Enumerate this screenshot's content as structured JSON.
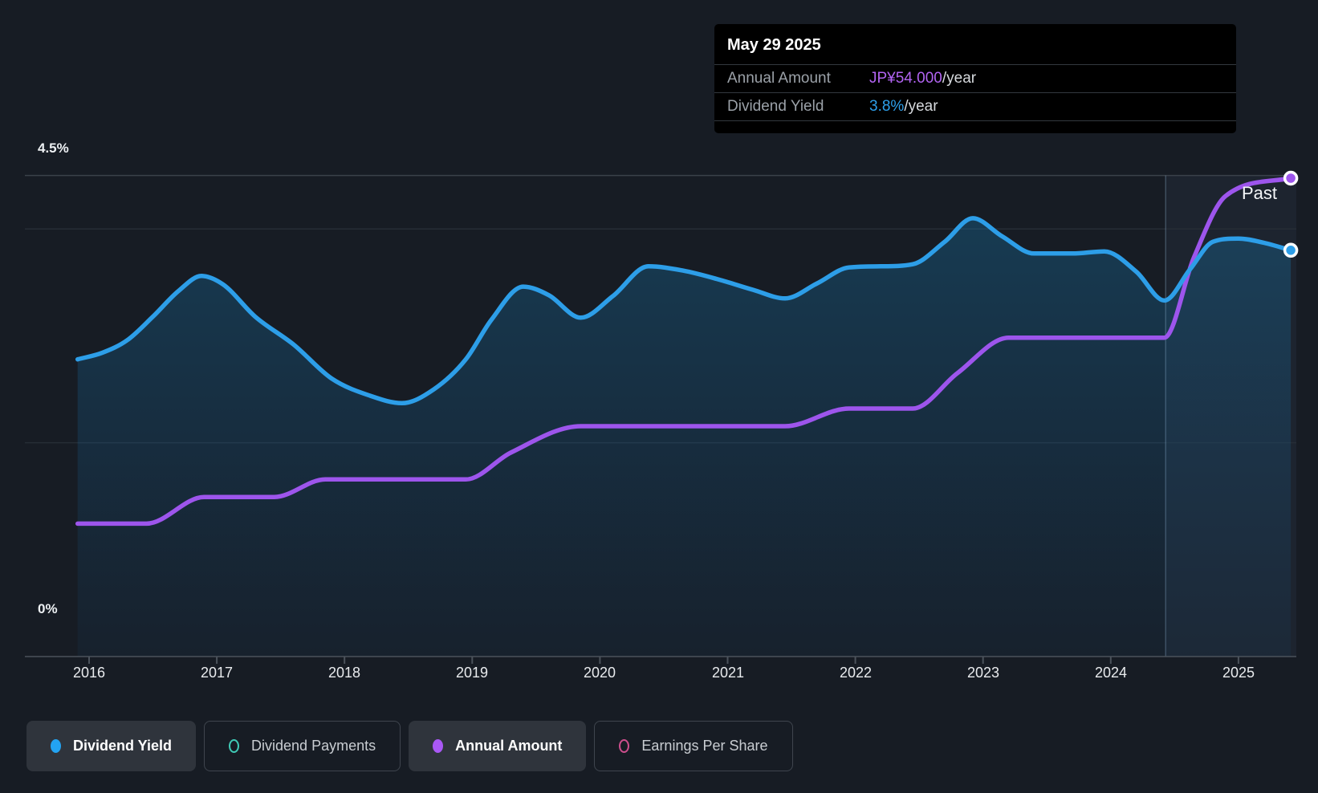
{
  "tooltip": {
    "date": "May 29 2025",
    "rows": [
      {
        "label": "Annual Amount",
        "value": "JP¥54.000",
        "suffix": "/year",
        "color": "#B264F2"
      },
      {
        "label": "Dividend Yield",
        "value": "3.8%",
        "suffix": "/year",
        "color": "#2D9FEA"
      }
    ]
  },
  "chart_data": {
    "type": "line",
    "x_axis": {
      "ticks": [
        2016,
        2017,
        2018,
        2019,
        2020,
        2021,
        2022,
        2023,
        2024,
        2025
      ],
      "x_range": [
        2015.91,
        2025.41
      ]
    },
    "y_axis": {
      "unit": "%",
      "top_label": "4.5%",
      "bottom_label": "0%",
      "gridlines_pct": [
        4.5,
        4.0,
        2.0
      ],
      "range_pct": [
        0,
        4.5
      ]
    },
    "past_label": "Past",
    "now_marker_year": 2024.43,
    "legend_position": "bottom",
    "grid": "partial-horizontal",
    "series": [
      {
        "name": "Dividend Yield",
        "unit": "%",
        "color": "#2D9EE8",
        "style": "line+area",
        "current_value": "3.8%",
        "points": [
          [
            2015.91,
            2.78
          ],
          [
            2016.1,
            2.84
          ],
          [
            2016.3,
            2.96
          ],
          [
            2016.5,
            3.18
          ],
          [
            2016.7,
            3.42
          ],
          [
            2016.88,
            3.56
          ],
          [
            2017.05,
            3.48
          ],
          [
            2017.3,
            3.18
          ],
          [
            2017.6,
            2.92
          ],
          [
            2017.9,
            2.6
          ],
          [
            2018.2,
            2.44
          ],
          [
            2018.45,
            2.37
          ],
          [
            2018.7,
            2.5
          ],
          [
            2018.95,
            2.78
          ],
          [
            2019.15,
            3.15
          ],
          [
            2019.4,
            3.46
          ],
          [
            2019.6,
            3.38
          ],
          [
            2019.85,
            3.17
          ],
          [
            2020.1,
            3.37
          ],
          [
            2020.38,
            3.65
          ],
          [
            2020.65,
            3.61
          ],
          [
            2020.95,
            3.52
          ],
          [
            2021.2,
            3.43
          ],
          [
            2021.45,
            3.35
          ],
          [
            2021.7,
            3.49
          ],
          [
            2021.95,
            3.64
          ],
          [
            2022.2,
            3.65
          ],
          [
            2022.45,
            3.67
          ],
          [
            2022.7,
            3.88
          ],
          [
            2022.92,
            4.1
          ],
          [
            2023.15,
            3.93
          ],
          [
            2023.4,
            3.77
          ],
          [
            2023.7,
            3.77
          ],
          [
            2023.95,
            3.79
          ],
          [
            2024.2,
            3.6
          ],
          [
            2024.42,
            3.33
          ],
          [
            2024.62,
            3.62
          ],
          [
            2024.8,
            3.88
          ],
          [
            2025.0,
            3.91
          ],
          [
            2025.2,
            3.87
          ],
          [
            2025.41,
            3.8
          ]
        ]
      },
      {
        "name": "Annual Amount",
        "unit": "JP¥/year",
        "color": "#9D55EC",
        "style": "line",
        "current_value": "JP¥54.000",
        "points": [
          [
            2015.91,
            15
          ],
          [
            2016.45,
            15
          ],
          [
            2016.9,
            18
          ],
          [
            2017.45,
            18
          ],
          [
            2017.85,
            20
          ],
          [
            2018.95,
            20
          ],
          [
            2019.3,
            23
          ],
          [
            2019.85,
            26
          ],
          [
            2021.45,
            26
          ],
          [
            2021.95,
            28
          ],
          [
            2022.45,
            28
          ],
          [
            2022.8,
            32
          ],
          [
            2023.2,
            36
          ],
          [
            2024.42,
            36
          ],
          [
            2024.65,
            45
          ],
          [
            2024.9,
            52
          ],
          [
            2025.41,
            54
          ]
        ]
      }
    ]
  },
  "legend": {
    "items": [
      {
        "label": "Dividend Yield",
        "color": "#23A3F2",
        "marker": "filled",
        "active": true
      },
      {
        "label": "Dividend Payments",
        "color": "#3FC9B5",
        "marker": "hollow",
        "active": false
      },
      {
        "label": "Annual Amount",
        "color": "#A958F5",
        "marker": "filled",
        "active": true
      },
      {
        "label": "Earnings Per Share",
        "color": "#CC4E8C",
        "marker": "hollow",
        "active": false
      }
    ]
  }
}
